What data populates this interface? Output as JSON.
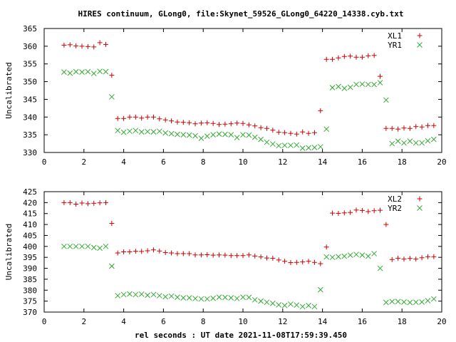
{
  "title": "HIRES continuum, GLong0, file:Skynet_59526_GLong0_64220_14338.cyb.txt",
  "xlabel": "rel seconds : UT date 2021-11-08T17:59:39.450",
  "chart_data": [
    {
      "type": "scatter",
      "ylabel": "Uncalibrated",
      "xlim": [
        0,
        20
      ],
      "ylim": [
        330,
        365
      ],
      "xticks": [
        0,
        2,
        4,
        6,
        8,
        10,
        12,
        14,
        16,
        18,
        20
      ],
      "yticks": [
        330,
        335,
        340,
        345,
        350,
        355,
        360,
        365
      ],
      "legend_position": "top-right",
      "x": [
        1.0,
        1.3,
        1.6,
        1.9,
        2.2,
        2.5,
        2.8,
        3.1,
        3.4,
        3.7,
        4.0,
        4.3,
        4.6,
        4.9,
        5.2,
        5.5,
        5.8,
        6.1,
        6.4,
        6.7,
        7.0,
        7.3,
        7.6,
        7.9,
        8.2,
        8.5,
        8.8,
        9.1,
        9.4,
        9.7,
        10.0,
        10.3,
        10.6,
        10.9,
        11.2,
        11.5,
        11.8,
        12.1,
        12.4,
        12.7,
        13.0,
        13.3,
        13.6,
        13.9,
        14.2,
        14.5,
        14.8,
        15.1,
        15.4,
        15.7,
        16.0,
        16.3,
        16.6,
        16.9,
        17.2,
        17.5,
        17.8,
        18.1,
        18.4,
        18.7,
        19.0,
        19.3,
        19.6
      ],
      "series": [
        {
          "name": "XL1",
          "marker": "plus",
          "color": "#cc0000",
          "values": [
            360.3,
            360.4,
            360.1,
            360.0,
            359.9,
            359.8,
            361.0,
            360.5,
            351.8,
            339.6,
            339.6,
            340.0,
            340.0,
            339.7,
            340.0,
            340.0,
            339.5,
            339.2,
            338.9,
            338.6,
            338.5,
            338.4,
            338.1,
            338.3,
            338.4,
            338.2,
            337.9,
            338.0,
            338.1,
            338.3,
            338.2,
            337.8,
            337.5,
            337.0,
            336.8,
            336.3,
            335.7,
            335.6,
            335.4,
            335.2,
            335.8,
            335.4,
            335.6,
            341.8,
            356.3,
            356.3,
            356.7,
            357.1,
            357.2,
            356.9,
            356.9,
            357.3,
            357.4,
            351.5,
            336.8,
            336.8,
            336.6,
            336.9,
            336.8,
            337.3,
            337.2,
            337.6,
            337.6
          ]
        },
        {
          "name": "YR1",
          "marker": "cross",
          "color": "#33aa33",
          "values": [
            352.7,
            352.4,
            352.8,
            352.7,
            352.8,
            352.3,
            352.9,
            352.8,
            345.7,
            336.2,
            335.7,
            336.0,
            336.2,
            335.8,
            335.9,
            335.8,
            336.0,
            335.5,
            335.3,
            335.1,
            335.0,
            334.9,
            334.7,
            334.0,
            334.6,
            335.0,
            335.2,
            335.1,
            335.0,
            334.2,
            335.0,
            334.9,
            334.3,
            333.7,
            332.9,
            332.4,
            331.9,
            332.0,
            332.0,
            332.1,
            331.2,
            331.3,
            331.4,
            331.6,
            336.6,
            348.3,
            348.6,
            348.1,
            348.4,
            349.2,
            349.3,
            349.2,
            349.2,
            349.7,
            344.8,
            332.5,
            333.2,
            332.7,
            333.2,
            332.7,
            332.7,
            333.3,
            333.7
          ]
        }
      ]
    },
    {
      "type": "scatter",
      "ylabel": "Uncalibrated",
      "xlim": [
        0,
        20
      ],
      "ylim": [
        370,
        425
      ],
      "xticks": [
        0,
        2,
        4,
        6,
        8,
        10,
        12,
        14,
        16,
        18,
        20
      ],
      "yticks": [
        370,
        375,
        380,
        385,
        390,
        395,
        400,
        405,
        410,
        415,
        420,
        425
      ],
      "legend_position": "top-right",
      "x": [
        1.0,
        1.3,
        1.6,
        1.9,
        2.2,
        2.5,
        2.8,
        3.1,
        3.4,
        3.7,
        4.0,
        4.3,
        4.6,
        4.9,
        5.2,
        5.5,
        5.8,
        6.1,
        6.4,
        6.7,
        7.0,
        7.3,
        7.6,
        7.9,
        8.2,
        8.5,
        8.8,
        9.1,
        9.4,
        9.7,
        10.0,
        10.3,
        10.6,
        10.9,
        11.2,
        11.5,
        11.8,
        12.1,
        12.4,
        12.7,
        13.0,
        13.3,
        13.6,
        13.9,
        14.2,
        14.5,
        14.8,
        15.1,
        15.4,
        15.7,
        16.0,
        16.3,
        16.6,
        16.9,
        17.2,
        17.5,
        17.8,
        18.1,
        18.4,
        18.7,
        19.0,
        19.3,
        19.6
      ],
      "series": [
        {
          "name": "XL2",
          "marker": "plus",
          "color": "#cc0000",
          "values": [
            420.0,
            420.0,
            419.3,
            419.8,
            419.5,
            419.7,
            419.9,
            420.0,
            410.5,
            397.0,
            397.5,
            397.5,
            397.8,
            397.7,
            398.0,
            398.4,
            397.9,
            397.2,
            397.0,
            396.7,
            396.7,
            396.7,
            396.1,
            396.1,
            396.2,
            396.0,
            396.1,
            396.0,
            395.8,
            395.8,
            395.8,
            396.1,
            395.6,
            395.2,
            394.7,
            394.6,
            393.8,
            393.2,
            392.6,
            392.7,
            392.9,
            393.2,
            392.7,
            392.1,
            399.7,
            415.2,
            415.1,
            415.3,
            415.5,
            416.6,
            416.4,
            415.9,
            416.3,
            416.5,
            410.0,
            394.0,
            394.6,
            394.2,
            394.5,
            394.2,
            394.8,
            395.3,
            395.3
          ]
        },
        {
          "name": "YR2",
          "marker": "cross",
          "color": "#33aa33",
          "values": [
            400.0,
            400.0,
            400.0,
            400.0,
            400.0,
            399.5,
            399.2,
            400.0,
            391.0,
            377.5,
            378.0,
            378.3,
            378.0,
            378.2,
            377.7,
            378.0,
            377.5,
            377.0,
            377.3,
            376.8,
            376.5,
            376.5,
            376.2,
            376.0,
            376.0,
            376.3,
            376.8,
            376.7,
            376.5,
            376.2,
            376.8,
            376.7,
            375.6,
            375.0,
            374.5,
            374.0,
            373.3,
            373.0,
            373.6,
            373.2,
            372.5,
            373.0,
            372.5,
            380.2,
            395.2,
            395.0,
            395.3,
            395.5,
            396.0,
            396.3,
            396.0,
            395.5,
            396.7,
            390.0,
            374.4,
            374.8,
            374.8,
            374.6,
            374.4,
            374.5,
            374.6,
            375.2,
            376.0
          ]
        }
      ]
    }
  ]
}
